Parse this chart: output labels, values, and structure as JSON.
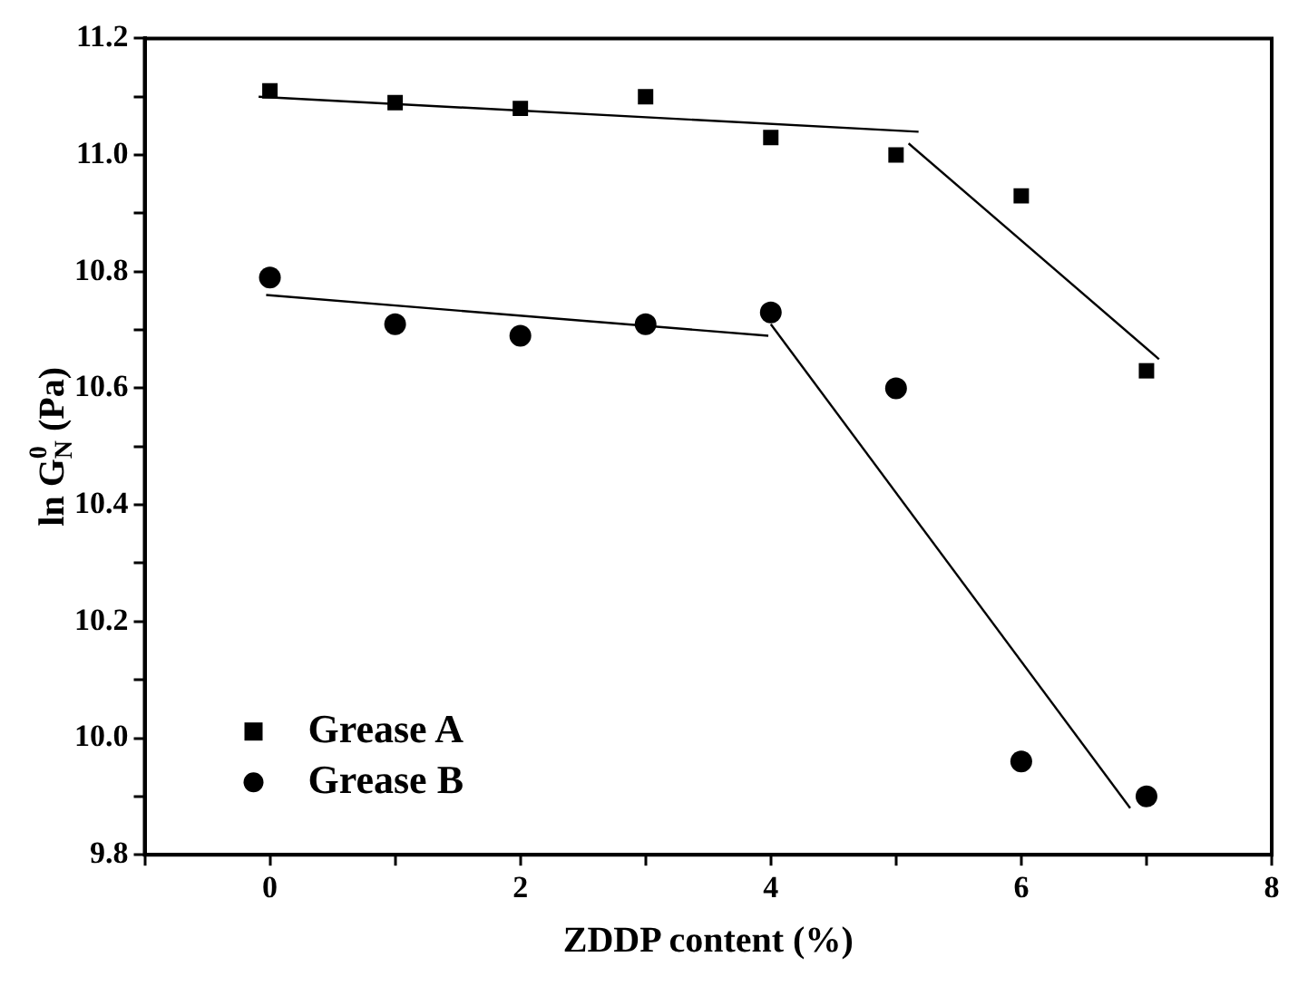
{
  "chart_data": {
    "type": "scatter",
    "xlabel": "ZDDP content (%)",
    "ylabel": "ln G$_{N}$$^{0}$ (Pa)",
    "xlim": [
      -1,
      8
    ],
    "ylim": [
      9.8,
      11.2
    ],
    "xticks": [
      {
        "value": -1,
        "label": null
      },
      0,
      {
        "value": 1,
        "label": null
      },
      2,
      {
        "value": 3,
        "label": null
      },
      4,
      {
        "value": 5,
        "label": null
      },
      6,
      {
        "value": 7,
        "label": null
      },
      8
    ],
    "yticks": [
      9.8,
      {
        "value": 9.9,
        "label": null
      },
      "10.0",
      {
        "value": 10.1,
        "label": null
      },
      10.2,
      {
        "value": 10.3,
        "label": null
      },
      10.4,
      {
        "value": 10.5,
        "label": null
      },
      10.6,
      {
        "value": 10.7,
        "label": null
      },
      10.8,
      {
        "value": 10.9,
        "label": null
      },
      "11.0",
      {
        "value": 11.1,
        "label": null
      },
      11.2
    ],
    "grid": false,
    "legend": "bottom left",
    "series": [
      {
        "name": "Grease A",
        "type": "scatter",
        "marker": "square",
        "color": "#000000",
        "x": [
          0,
          1,
          2,
          3,
          4,
          5,
          6,
          7
        ],
        "values": [
          11.11,
          11.09,
          11.08,
          11.1,
          11.03,
          11.0,
          10.93,
          10.63
        ]
      },
      {
        "name": "Grease B",
        "type": "scatter",
        "marker": "circle",
        "color": "#000000",
        "x": [
          0,
          1,
          2,
          3,
          4,
          5,
          6,
          7
        ],
        "values": [
          10.79,
          10.71,
          10.69,
          10.71,
          10.73,
          10.6,
          9.96,
          9.9
        ]
      },
      {
        "type": "line",
        "marker": "none",
        "line_style": "solid",
        "color": "#000000",
        "x": [
          -0.09,
          5.18
        ],
        "values": [
          11.1,
          11.04
        ]
      },
      {
        "type": "line",
        "marker": "none",
        "line_style": "solid",
        "color": "#000000",
        "x": [
          5.1,
          7.1
        ],
        "values": [
          11.02,
          10.65
        ]
      },
      {
        "type": "line",
        "marker": "none",
        "line_style": "solid",
        "color": "#000000",
        "x": [
          -0.03,
          3.98
        ],
        "values": [
          10.76,
          10.69
        ]
      },
      {
        "type": "line",
        "marker": "none",
        "line_style": "solid",
        "color": "#000000",
        "x": [
          4.0,
          6.87
        ],
        "values": [
          10.71,
          9.88
        ]
      }
    ]
  }
}
